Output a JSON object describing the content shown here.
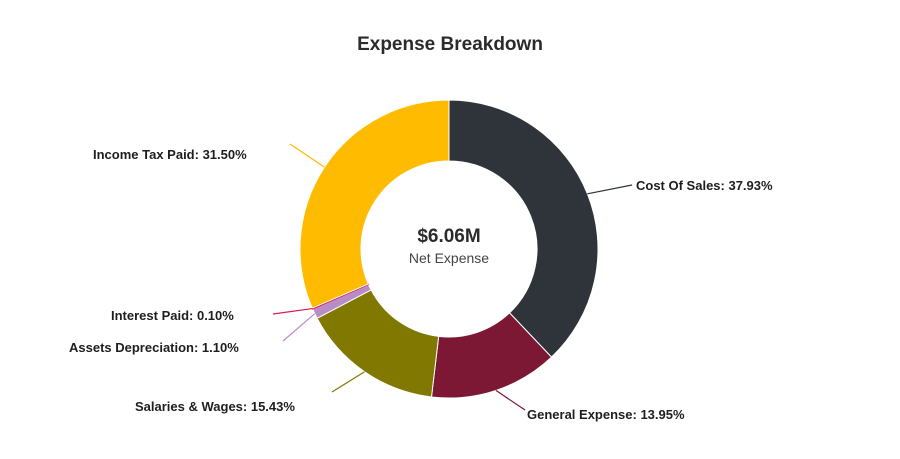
{
  "chart_data": {
    "type": "pie",
    "subtype": "donut",
    "title": "Expense Breakdown",
    "center": {
      "value": "$6.06M",
      "label": "Net Expense"
    },
    "slices": [
      {
        "name": "Cost Of Sales",
        "value": 37.93,
        "color": "#2e3439",
        "label": "Cost Of Sales: 37.93%"
      },
      {
        "name": "General Expense",
        "value": 13.95,
        "color": "#7c1734",
        "label": "General Expense: 13.95%"
      },
      {
        "name": "Salaries & Wages",
        "value": 15.43,
        "color": "#807800",
        "label": "Salaries & Wages: 15.43%"
      },
      {
        "name": "Assets Depreciation",
        "value": 1.1,
        "color": "#b98cc7",
        "label": "Assets Depreciation: 1.10%"
      },
      {
        "name": "Interest Paid",
        "value": 0.1,
        "color": "#d81b4a",
        "label": "Interest Paid: 0.10%"
      },
      {
        "name": "Income Tax Paid",
        "value": 31.5,
        "color": "#ffbb00",
        "label": "Income Tax Paid: 31.50%"
      }
    ],
    "units": "%",
    "legend": "none (outside labels with leader lines)"
  }
}
